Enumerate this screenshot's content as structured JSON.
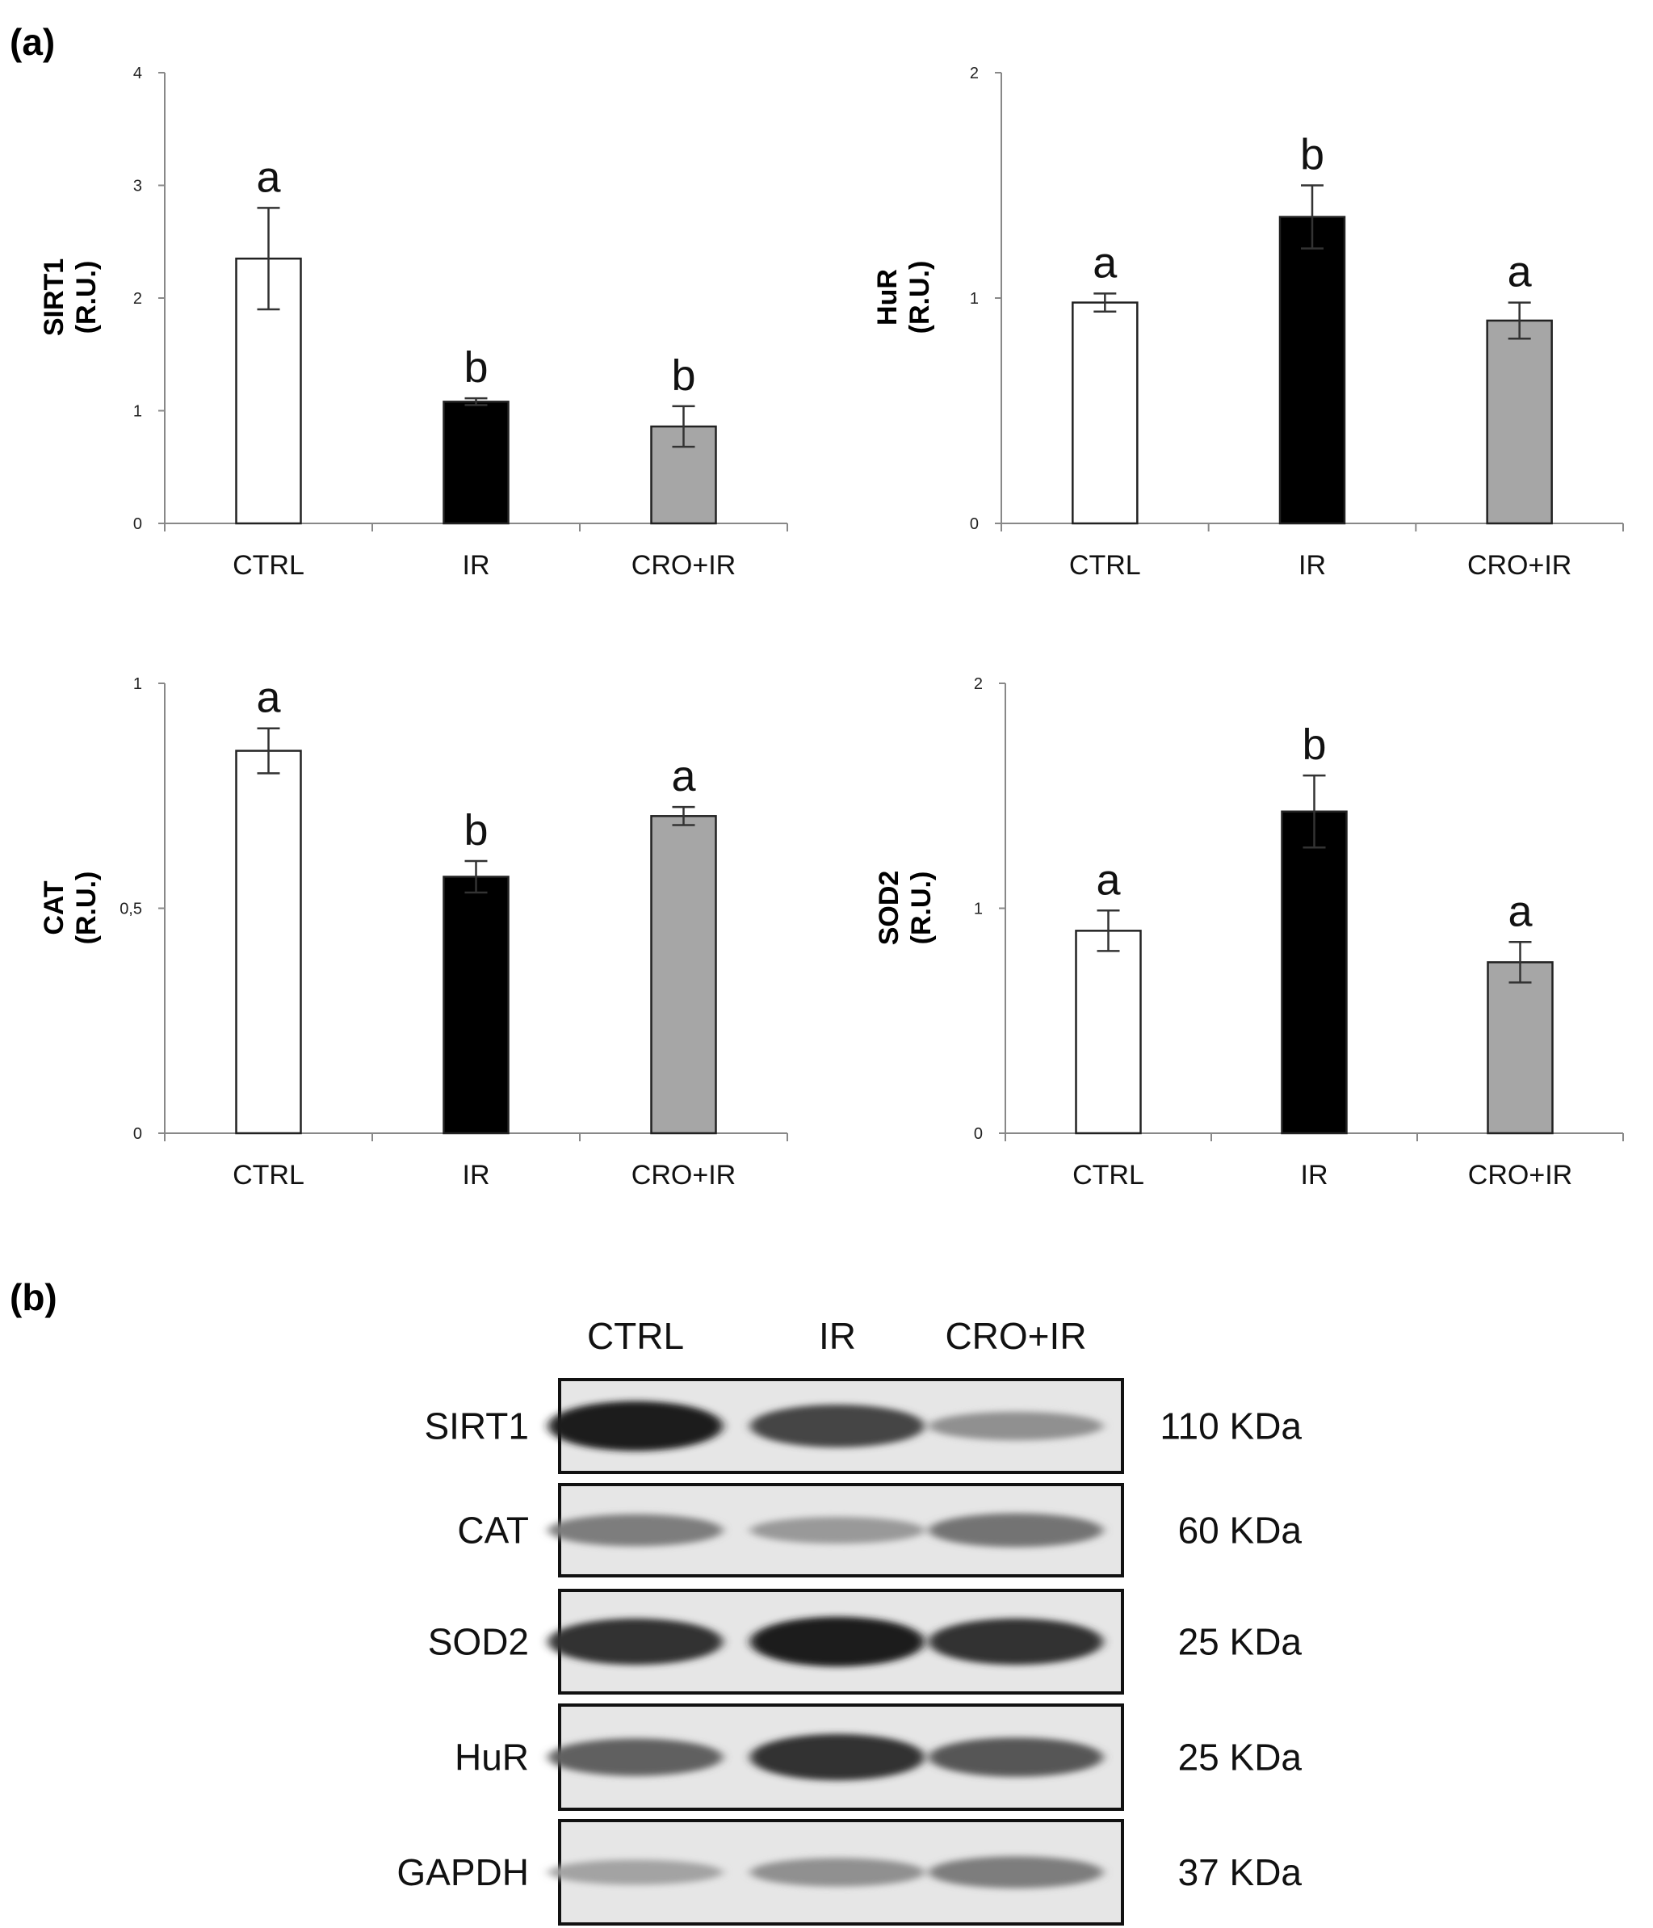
{
  "panels": {
    "a": "(a)",
    "b": "(b)"
  },
  "chart_data": [
    {
      "type": "bar",
      "categories": [
        "CTRL",
        "IR",
        "CRO+IR"
      ],
      "values": [
        2.35,
        1.08,
        0.86
      ],
      "errors": [
        0.45,
        0.03,
        0.18
      ],
      "letters": [
        "a",
        "b",
        "b"
      ],
      "colors": [
        "#ffffff",
        "#000000",
        "#a6a6a6"
      ],
      "ylabel": [
        "SIRT1",
        "(R.U.)"
      ],
      "ylim": [
        0,
        4
      ],
      "yticks": [
        "0",
        "1",
        "2",
        "3",
        "4"
      ],
      "ytick_values": [
        0,
        1,
        2,
        3,
        4
      ]
    },
    {
      "type": "bar",
      "categories": [
        "CTRL",
        "IR",
        "CRO+IR"
      ],
      "values": [
        0.98,
        1.36,
        0.9
      ],
      "errors": [
        0.04,
        0.14,
        0.08
      ],
      "letters": [
        "a",
        "b",
        "a"
      ],
      "colors": [
        "#ffffff",
        "#000000",
        "#a6a6a6"
      ],
      "ylabel": [
        "HuR",
        "(R.U.)"
      ],
      "ylim": [
        0,
        2
      ],
      "yticks": [
        "0",
        "1",
        "2"
      ],
      "ytick_values": [
        0,
        1,
        2
      ]
    },
    {
      "type": "bar",
      "categories": [
        "CTRL",
        "IR",
        "CRO+IR"
      ],
      "values": [
        0.85,
        0.57,
        0.705
      ],
      "errors": [
        0.05,
        0.035,
        0.02
      ],
      "letters": [
        "a",
        "b",
        "a"
      ],
      "colors": [
        "#ffffff",
        "#000000",
        "#a6a6a6"
      ],
      "ylabel": [
        "CAT",
        "(R.U.)"
      ],
      "ylim": [
        0,
        1
      ],
      "yticks": [
        "0",
        "0,5",
        "1"
      ],
      "ytick_values": [
        0,
        0.5,
        1
      ]
    },
    {
      "type": "bar",
      "categories": [
        "CTRL",
        "IR",
        "CRO+IR"
      ],
      "values": [
        0.9,
        1.43,
        0.76
      ],
      "errors": [
        0.09,
        0.16,
        0.09
      ],
      "letters": [
        "a",
        "b",
        "a"
      ],
      "colors": [
        "#ffffff",
        "#000000",
        "#a6a6a6"
      ],
      "ylabel": [
        "SOD2",
        "(R.U.)"
      ],
      "ylim": [
        0,
        2
      ],
      "yticks": [
        "0",
        "1",
        "2"
      ],
      "ytick_values": [
        0,
        1,
        2
      ]
    }
  ],
  "blot": {
    "lanes": [
      "CTRL",
      "IR",
      "CRO+IR"
    ],
    "rows": [
      {
        "protein": "SIRT1",
        "size": "110 KDa",
        "intensity": [
          0.95,
          0.75,
          0.35
        ]
      },
      {
        "protein": "CAT",
        "size": "60 KDa",
        "intensity": [
          0.45,
          0.3,
          0.5
        ]
      },
      {
        "protein": "SOD2",
        "size": "25 KDa",
        "intensity": [
          0.85,
          0.95,
          0.85
        ]
      },
      {
        "protein": "HuR",
        "size": "25 KDa",
        "intensity": [
          0.6,
          0.85,
          0.65
        ]
      },
      {
        "protein": "GAPDH",
        "size": "37 KDa",
        "intensity": [
          0.25,
          0.35,
          0.45
        ]
      }
    ]
  }
}
